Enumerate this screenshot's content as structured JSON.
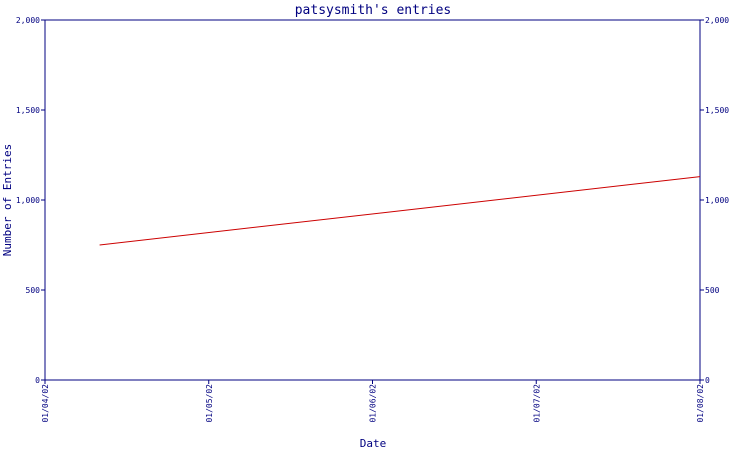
{
  "chart_data": {
    "type": "line",
    "title": "patsysmith's entries",
    "xlabel": "Date",
    "ylabel": "Number of Entries",
    "x_ticks": [
      "01/04/02",
      "01/05/02",
      "01/06/02",
      "01/07/02",
      "01/08/02"
    ],
    "y_ticks": [
      "0",
      "500",
      "1,000",
      "1,500",
      "2,000"
    ],
    "ylim": [
      0,
      2000
    ],
    "xlim": [
      "2002-01-04",
      "2002-01-08"
    ],
    "series": [
      {
        "color": "#cc0000",
        "points": [
          {
            "x": "2002-01-04 08:00",
            "y": 750
          },
          {
            "x": "2002-01-08",
            "y": 1130
          }
        ]
      }
    ],
    "colors": {
      "axis": "#000080",
      "line": "#cc0000"
    },
    "grid": false,
    "right_axis_mirrors_left": true
  }
}
